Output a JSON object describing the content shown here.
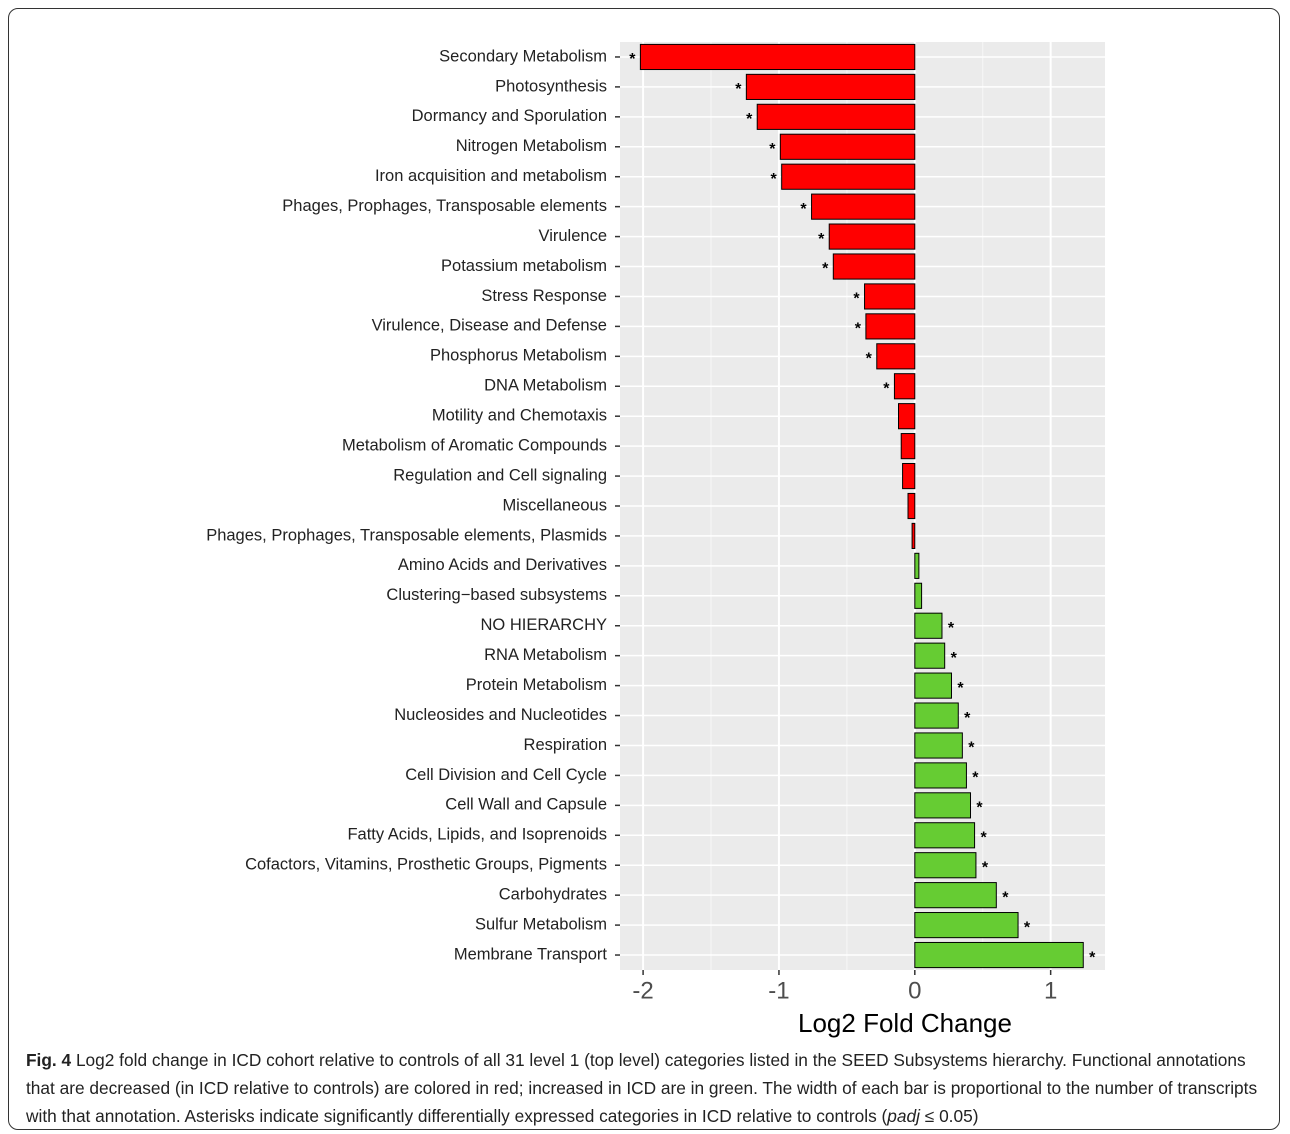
{
  "chart_data": {
    "type": "barh",
    "xlabel": "Log2 Fold Change",
    "categories": [
      "Secondary Metabolism",
      "Photosynthesis",
      "Dormancy and Sporulation",
      "Nitrogen Metabolism",
      "Iron acquisition and metabolism",
      "Phages, Prophages, Transposable elements",
      "Virulence",
      "Potassium metabolism",
      "Stress Response",
      "Virulence, Disease and Defense",
      "Phosphorus Metabolism",
      "DNA Metabolism",
      "Motility and Chemotaxis",
      "Metabolism of Aromatic Compounds",
      "Regulation and Cell signaling",
      "Miscellaneous",
      "Phages, Prophages, Transposable elements, Plasmids",
      "Amino Acids and Derivatives",
      "Clustering−based subsystems",
      "NO HIERARCHY",
      "RNA Metabolism",
      "Protein Metabolism",
      "Nucleosides and Nucleotides",
      "Respiration",
      "Cell Division and Cell Cycle",
      "Cell Wall and Capsule",
      "Fatty Acids, Lipids, and Isoprenoids",
      "Cofactors, Vitamins, Prosthetic Groups, Pigments",
      "Carbohydrates",
      "Sulfur Metabolism",
      "Membrane Transport"
    ],
    "values": [
      -2.02,
      -1.24,
      -1.16,
      -0.99,
      -0.98,
      -0.76,
      -0.63,
      -0.6,
      -0.37,
      -0.36,
      -0.28,
      -0.15,
      -0.12,
      -0.1,
      -0.09,
      -0.05,
      -0.02,
      0.03,
      0.05,
      0.2,
      0.22,
      0.27,
      0.32,
      0.35,
      0.38,
      0.41,
      0.44,
      0.45,
      0.6,
      0.76,
      1.24
    ],
    "significant": [
      true,
      true,
      true,
      true,
      true,
      true,
      true,
      true,
      true,
      true,
      true,
      true,
      false,
      false,
      false,
      false,
      false,
      false,
      false,
      true,
      true,
      true,
      true,
      true,
      true,
      true,
      true,
      true,
      true,
      true,
      true
    ],
    "marker": "*",
    "negative_color": "#ff0000",
    "positive_color": "#66cc33",
    "xlim": [
      -2.17,
      1.4
    ],
    "xticks": [
      -2,
      -1,
      0,
      1
    ],
    "grid": true
  },
  "caption": {
    "label": "Fig. 4",
    "text": " Log2 fold change in ICD cohort relative to controls of all 31 level 1 (top level) categories listed in the SEED Subsystems hierarchy. Functional annotations that are decreased (in ICD relative to controls) are colored in red; increased in ICD are in green. The width of each bar is proportional to the number of transcripts with that annotation. Asterisks indicate significantly differentially expressed categories in ICD relative to controls (",
    "italic": "padj",
    "end": " ≤ 0.05)"
  }
}
